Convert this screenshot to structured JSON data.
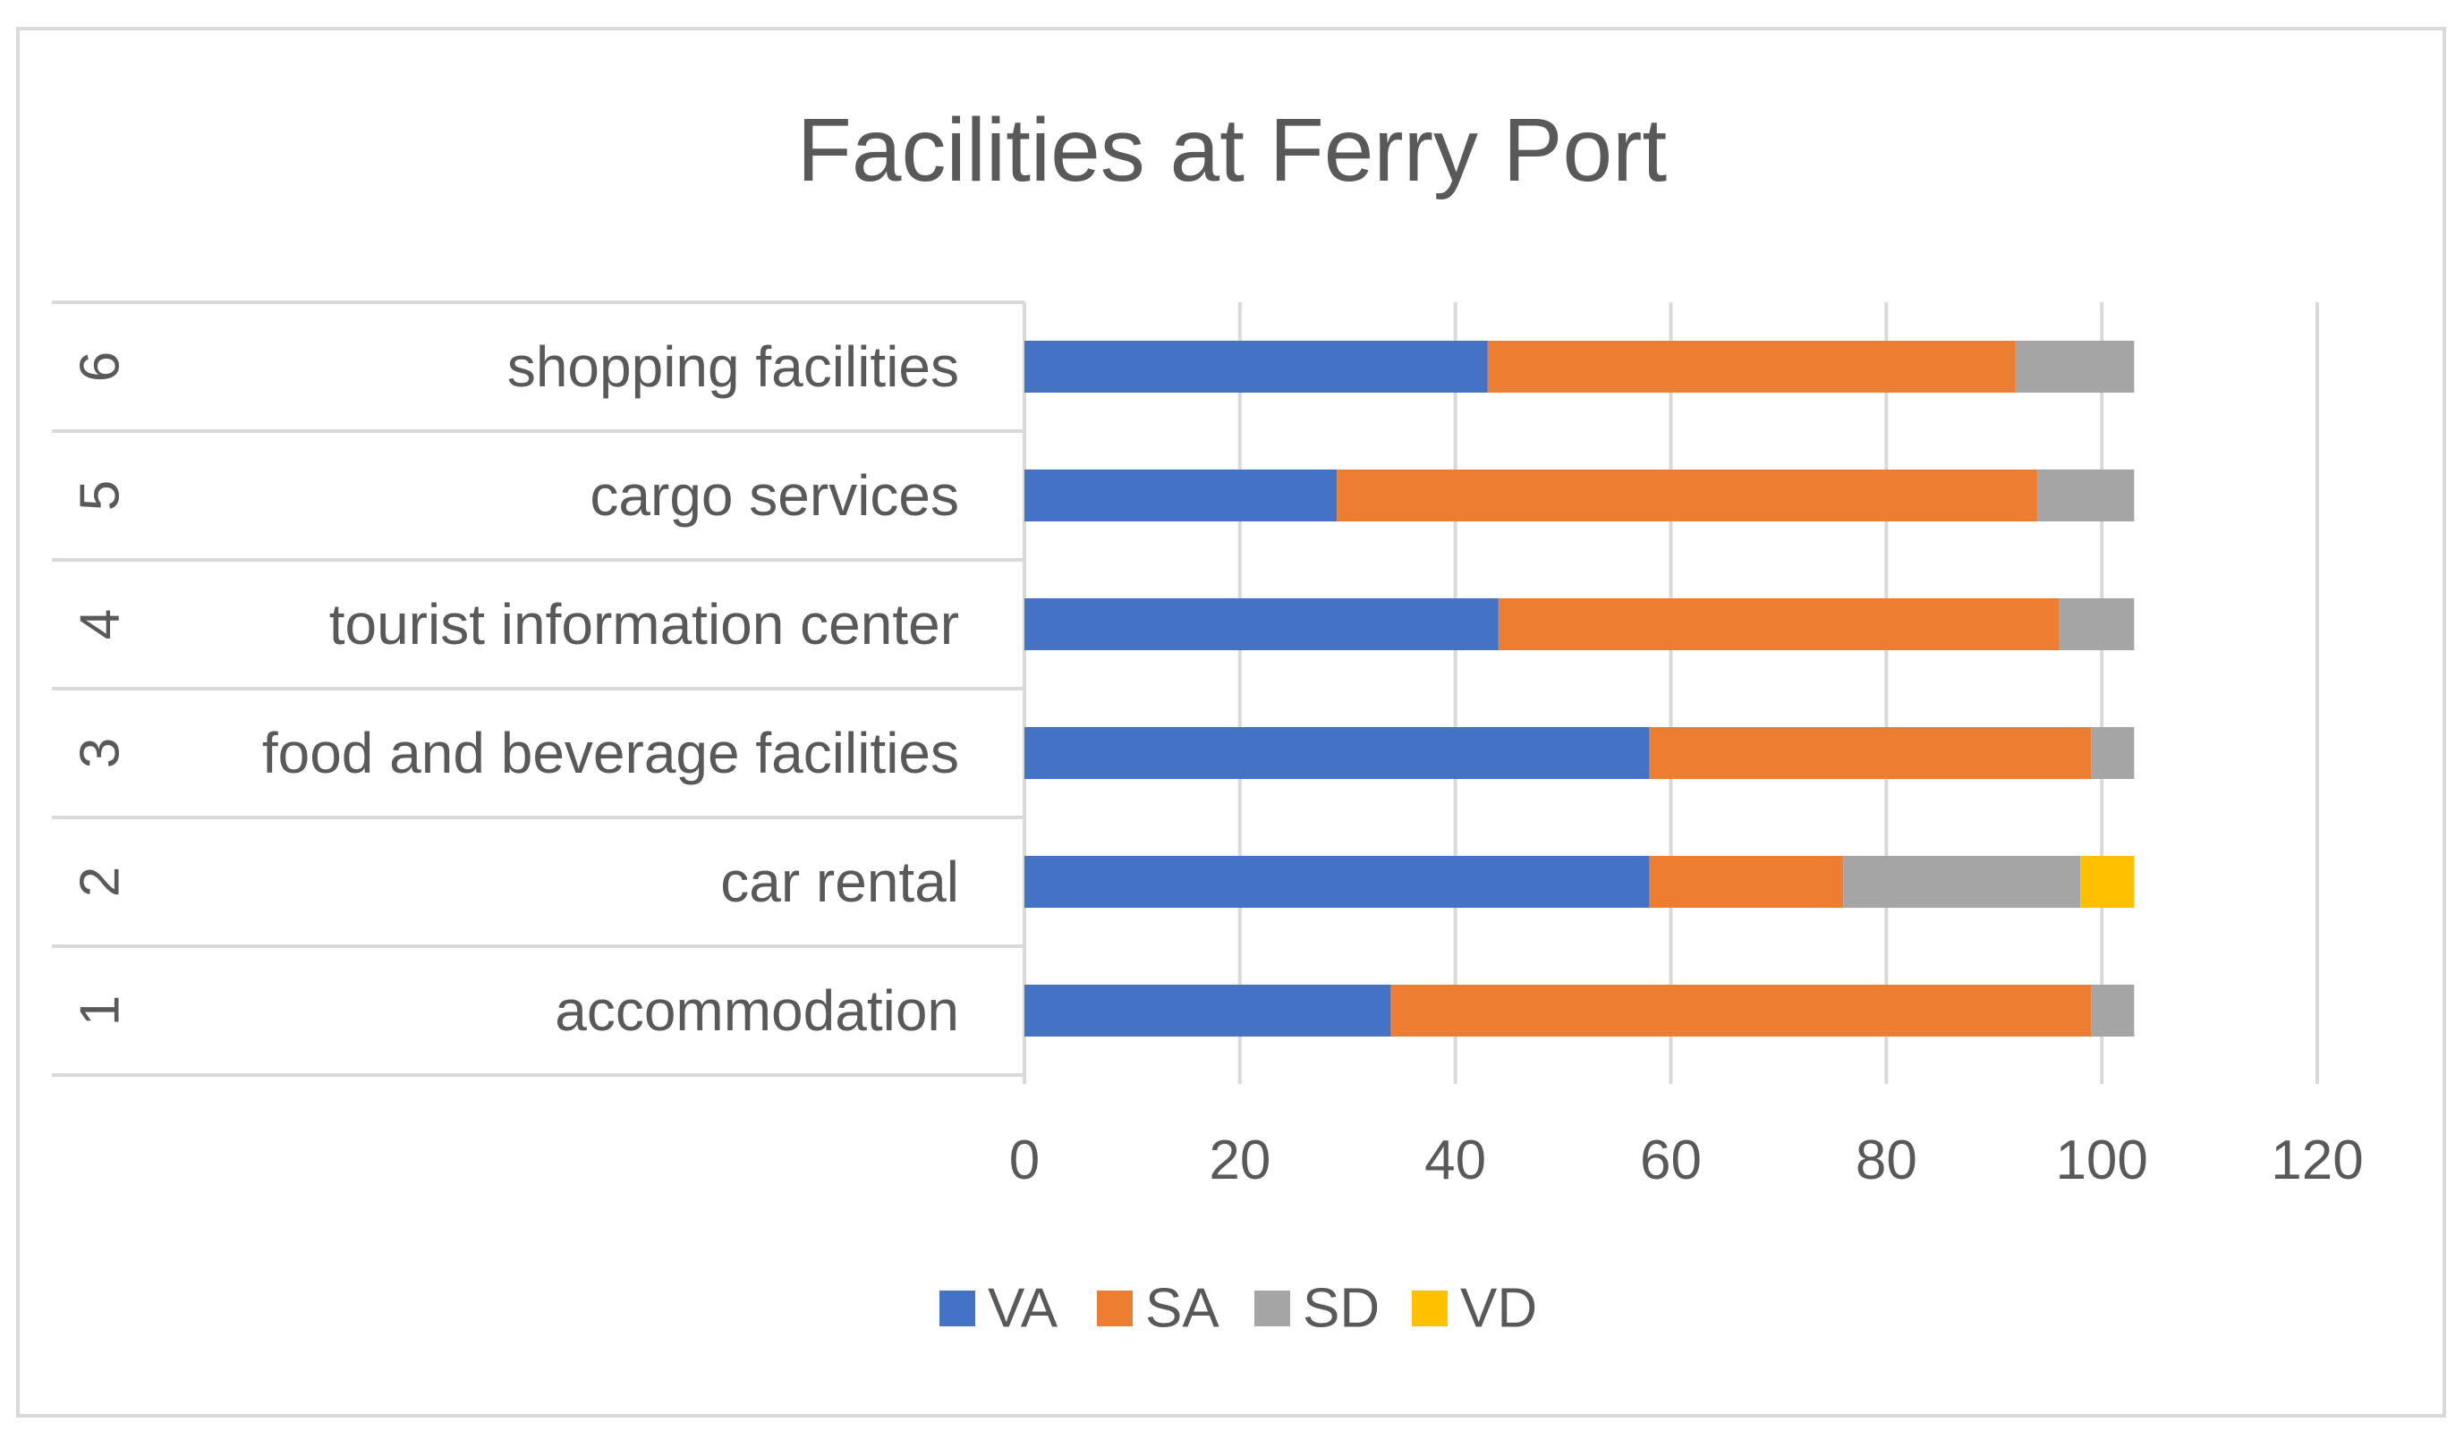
{
  "chart_data": {
    "type": "bar",
    "orientation": "horizontal",
    "stacked": true,
    "title": "Facilities at Ferry Port",
    "categories": [
      {
        "index": "1",
        "label": "accommodation"
      },
      {
        "index": "2",
        "label": "car rental"
      },
      {
        "index": "3",
        "label": "food and beverage facilities"
      },
      {
        "index": "4",
        "label": "tourist information center"
      },
      {
        "index": "5",
        "label": "cargo services"
      },
      {
        "index": "6",
        "label": "shopping facilities"
      }
    ],
    "series": [
      {
        "name": "VA",
        "color": "#4472c4",
        "values": [
          34,
          58,
          58,
          44,
          29,
          43
        ]
      },
      {
        "name": "SA",
        "color": "#ed7d31",
        "values": [
          65,
          18,
          41,
          52,
          65,
          49
        ]
      },
      {
        "name": "SD",
        "color": "#a5a5a5",
        "values": [
          4,
          22,
          4,
          7,
          9,
          11
        ]
      },
      {
        "name": "VD",
        "color": "#ffc000",
        "values": [
          0,
          5,
          0,
          0,
          0,
          0
        ]
      }
    ],
    "xlim": [
      0,
      120
    ],
    "xticks": [
      0,
      20,
      40,
      60,
      80,
      100,
      120
    ],
    "grid": true,
    "legend": "bottom"
  }
}
